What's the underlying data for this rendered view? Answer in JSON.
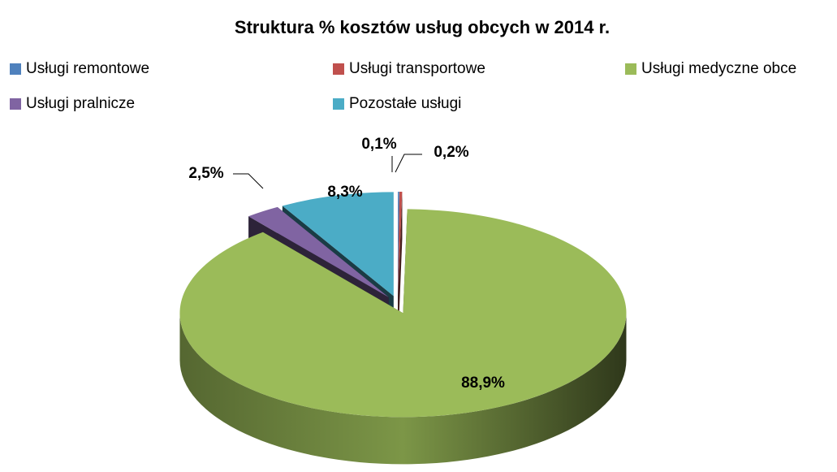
{
  "chart_data": {
    "type": "pie3d",
    "title": "Struktura % kosztów  usług obcych w 2014 r.",
    "categories": [
      "Usługi remontowe",
      "Usługi transportowe",
      "Usługi medyczne obce",
      "Usługi pralnicze",
      "Pozostałe usługi"
    ],
    "values": [
      0.1,
      0.2,
      88.9,
      2.5,
      8.3
    ],
    "value_labels": [
      "0,1%",
      "0,2%",
      "88,9%",
      "2,5%",
      "8,3%"
    ],
    "colors": [
      "#4f81bd",
      "#c0504d",
      "#9bbb59",
      "#8064a2",
      "#4bacc6"
    ],
    "legend": "top"
  }
}
